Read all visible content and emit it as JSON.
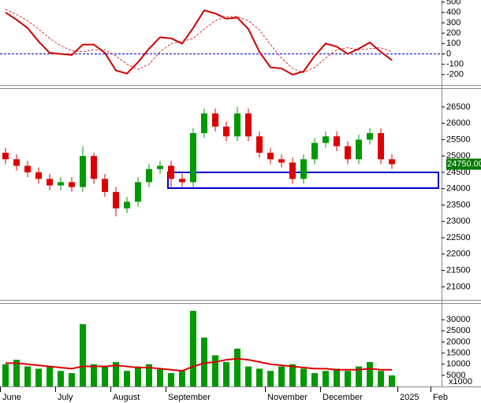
{
  "chart_data": [
    {
      "type": "line",
      "values": [
        400,
        330,
        250,
        120,
        10,
        0,
        -10,
        90,
        90,
        10,
        -160,
        -190,
        -80,
        50,
        160,
        150,
        100,
        250,
        420,
        390,
        340,
        350,
        240,
        20,
        -130,
        -140,
        -200,
        -170,
        -20,
        100,
        70,
        0,
        50,
        110,
        20,
        -60,
        null,
        null,
        null,
        null
      ],
      "color": "#cc0000",
      "signal_values": [
        430,
        380,
        320,
        240,
        150,
        80,
        30,
        20,
        40,
        40,
        -20,
        -100,
        -150,
        -100,
        20,
        100,
        120,
        150,
        240,
        320,
        360,
        360,
        320,
        230,
        90,
        -40,
        -140,
        -180,
        -130,
        -40,
        40,
        60,
        40,
        50,
        60,
        20,
        null,
        null,
        null,
        null
      ],
      "signal_color": "#cc0000",
      "signal_dash": true,
      "reference_line": 0,
      "reference_color": "#0000cc",
      "ylim": [
        -300,
        520
      ],
      "yticks": [
        -200,
        -100,
        0,
        100,
        200,
        300,
        400,
        500
      ]
    },
    {
      "type": "candlestick",
      "open": [
        25100,
        24900,
        24700,
        24500,
        24300,
        24100,
        24200,
        24050,
        25000,
        24300,
        23900,
        23400,
        23600,
        24200,
        24600,
        24700,
        24300,
        24200,
        25700,
        26300,
        25900,
        25600,
        26300,
        25600,
        25100,
        24900,
        24800,
        24300,
        24900,
        25400,
        25600,
        25300,
        24900,
        25500,
        25700,
        24900,
        null,
        null,
        null,
        null
      ],
      "high": [
        25250,
        25050,
        24850,
        24650,
        24450,
        24350,
        24350,
        25300,
        25100,
        24450,
        24050,
        23750,
        24350,
        24750,
        24850,
        24850,
        24450,
        25850,
        26450,
        26450,
        26050,
        26500,
        26450,
        25750,
        25250,
        25050,
        24950,
        25050,
        25550,
        25750,
        25750,
        25450,
        25650,
        25850,
        25850,
        25050,
        null,
        null,
        null,
        null
      ],
      "low": [
        24750,
        24550,
        24350,
        24150,
        23950,
        23950,
        23900,
        23900,
        24150,
        23750,
        23150,
        23250,
        23450,
        24050,
        24450,
        24050,
        24050,
        24050,
        25550,
        25750,
        25450,
        25450,
        25450,
        24950,
        24750,
        24650,
        24150,
        24150,
        24750,
        25250,
        25150,
        24750,
        24750,
        25350,
        24750,
        24600,
        null,
        null,
        null,
        null
      ],
      "close": [
        24900,
        24700,
        24500,
        24300,
        24100,
        24200,
        24050,
        25000,
        24300,
        23900,
        23400,
        23600,
        24200,
        24600,
        24700,
        24300,
        24200,
        25700,
        26300,
        25900,
        25600,
        26300,
        25600,
        25100,
        24900,
        24800,
        24300,
        24900,
        25400,
        25600,
        25300,
        24900,
        25500,
        25700,
        24900,
        24750,
        null,
        null,
        null,
        null
      ],
      "up_color": "#009900",
      "down_color": "#dd0000",
      "last_price": {
        "value": 24750,
        "label": "24750.00"
      },
      "last_price_color": "#007a00",
      "ylim": [
        20600,
        27050
      ],
      "yticks": [
        21000,
        21500,
        22000,
        22500,
        23000,
        23500,
        24000,
        24500,
        25000,
        25500,
        26000,
        26500
      ]
    },
    {
      "type": "bar",
      "categories": [
        "June",
        null,
        null,
        null,
        null,
        "July",
        null,
        null,
        null,
        null,
        "August",
        null,
        null,
        null,
        null,
        "September",
        null,
        null,
        null,
        null,
        null,
        null,
        null,
        null,
        "November",
        null,
        null,
        null,
        null,
        "December",
        null,
        null,
        null,
        null,
        null,
        null,
        "2025",
        null,
        null,
        "Feb"
      ],
      "values": [
        10000,
        12000,
        9000,
        8000,
        9000,
        7000,
        6000,
        28000,
        10000,
        9000,
        11000,
        7000,
        9000,
        10000,
        8000,
        6000,
        7000,
        34000,
        22000,
        14000,
        11000,
        17000,
        9000,
        8000,
        7000,
        9000,
        10000,
        8000,
        6000,
        7000,
        8000,
        7000,
        9000,
        11000,
        7000,
        5000,
        null,
        null,
        null,
        null
      ],
      "color": "#009900",
      "ma_values": [
        10500,
        10500,
        10000,
        9500,
        9000,
        8500,
        8000,
        9000,
        9000,
        9000,
        9500,
        9000,
        8500,
        8500,
        8000,
        7500,
        7000,
        9000,
        10500,
        11000,
        12000,
        12500,
        12000,
        11000,
        10000,
        9500,
        9000,
        8500,
        8000,
        8000,
        7500,
        7500,
        7500,
        8000,
        7500,
        7500,
        null,
        null,
        null,
        null
      ],
      "ma_color": "#dd0000",
      "y_unit_label": "x1000",
      "ylim": [
        0,
        37500
      ],
      "yticks": [
        5000,
        10000,
        15000,
        20000,
        25000,
        30000
      ]
    }
  ]
}
